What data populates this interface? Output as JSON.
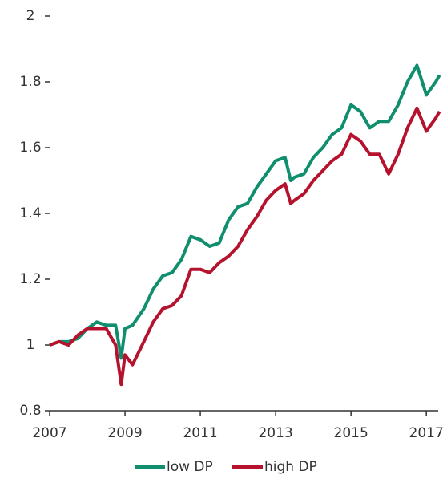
{
  "chart_data": {
    "type": "line",
    "x": [
      2007,
      2007.25,
      2007.5,
      2007.75,
      2008,
      2008.25,
      2008.5,
      2008.75,
      2008.9,
      2009,
      2009.2,
      2009.5,
      2009.75,
      2010,
      2010.25,
      2010.5,
      2010.75,
      2011,
      2011.25,
      2011.5,
      2011.75,
      2012,
      2012.25,
      2012.5,
      2012.75,
      2013,
      2013.25,
      2013.4,
      2013.5,
      2013.75,
      2014,
      2014.25,
      2014.5,
      2014.75,
      2015,
      2015.25,
      2015.5,
      2015.75,
      2016,
      2016.25,
      2016.5,
      2016.75,
      2017,
      2017.25,
      2017.35
    ],
    "series": [
      {
        "name": "low DP",
        "color": "#0f8f6e",
        "values": [
          1.0,
          1.01,
          1.01,
          1.02,
          1.05,
          1.07,
          1.06,
          1.06,
          0.96,
          1.05,
          1.06,
          1.11,
          1.17,
          1.21,
          1.22,
          1.26,
          1.33,
          1.32,
          1.3,
          1.31,
          1.38,
          1.42,
          1.43,
          1.48,
          1.52,
          1.56,
          1.57,
          1.5,
          1.51,
          1.52,
          1.57,
          1.6,
          1.64,
          1.66,
          1.73,
          1.71,
          1.66,
          1.68,
          1.68,
          1.73,
          1.8,
          1.85,
          1.76,
          1.8,
          1.82
        ]
      },
      {
        "name": "high DP",
        "color": "#b5122e",
        "values": [
          1.0,
          1.01,
          1.0,
          1.03,
          1.05,
          1.05,
          1.05,
          1.0,
          0.88,
          0.97,
          0.94,
          1.01,
          1.07,
          1.11,
          1.12,
          1.15,
          1.23,
          1.23,
          1.22,
          1.25,
          1.27,
          1.3,
          1.35,
          1.39,
          1.44,
          1.47,
          1.49,
          1.43,
          1.44,
          1.46,
          1.5,
          1.53,
          1.56,
          1.58,
          1.64,
          1.62,
          1.58,
          1.58,
          1.52,
          1.58,
          1.66,
          1.72,
          1.65,
          1.69,
          1.71
        ]
      }
    ],
    "xlim": [
      2007,
      2017.4
    ],
    "xticks": [
      2007,
      2009,
      2011,
      2013,
      2015,
      2017
    ],
    "ylim": [
      0.8,
      2
    ],
    "yticks": [
      0.8,
      1,
      1.2,
      1.4,
      1.6,
      1.8,
      2
    ],
    "legend": "bottom"
  }
}
